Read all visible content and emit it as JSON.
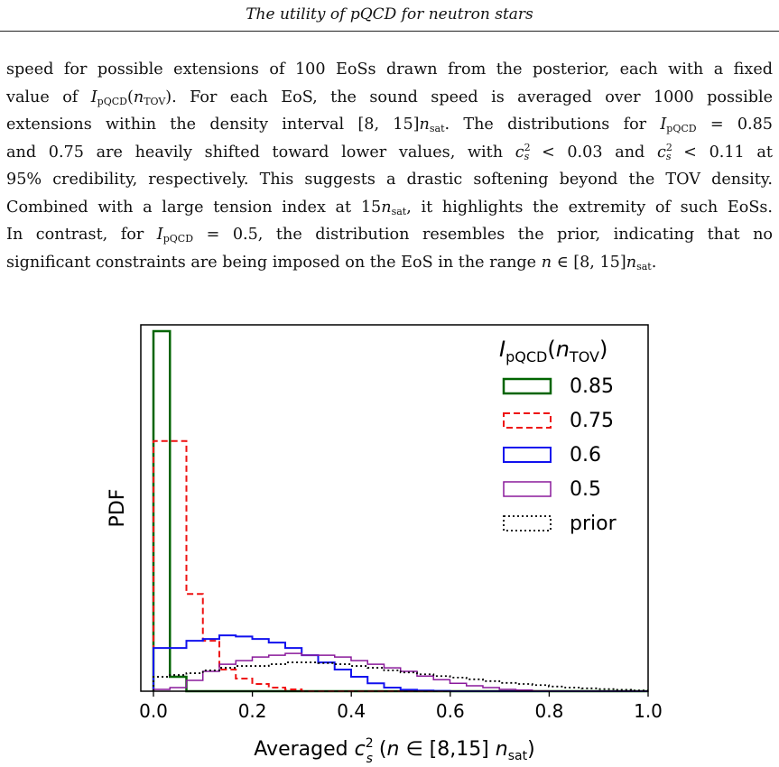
{
  "header": {
    "running_title": "The utility of pQCD for neutron stars"
  },
  "paragraph": {
    "l1": "speed for possible extensions of 100 EoSs drawn from the posterior, each with a fixed",
    "l2_a": "value of ",
    "l2_b": "). For each EoS, the sound speed is averaged over 1000 possible",
    "l3_a": "extensions within the density interval [8, 15]",
    "l3_b": ". The distributions for ",
    "l3_c": " = 0.85",
    "l4_a": "and 0.75 are heavily shifted toward lower values, with ",
    "l4_b": " < 0.03 and ",
    "l4_c": " < 0.11 at",
    "l5": "95% credibility, respectively. This suggests a drastic softening beyond the TOV density.",
    "l6_a": "Combined with a large tension index at 15",
    "l6_b": ", it highlights the extremity of such EoSs.",
    "l7_a": "In contrast, for ",
    "l7_b": " = 0.5, the distribution resembles the prior, indicating that no",
    "l8_a": "significant constraints are being imposed on the EoS in the range ",
    "l8_b": " ∈ [8, 15]",
    "l8_c": ".",
    "sym_I": "I",
    "sub_pqcd": "pQCD",
    "sym_n": "n",
    "sub_tov": "TOV",
    "sub_sat": "sat",
    "sym_c": "c",
    "sub_s": "s",
    "sup_2": "2"
  },
  "chart_data": {
    "type": "histogram",
    "xlabel_prefix": "Averaged ",
    "xlabel_mid": " (",
    "xlabel_in": " ∈ [8,15] ",
    "xlabel_suffix": ")",
    "ylabel": "PDF",
    "xlim": [
      0.0,
      1.0
    ],
    "xticks": [
      "0.0",
      "0.2",
      "0.4",
      "0.6",
      "0.8",
      "1.0"
    ],
    "grid": false,
    "legend_position": "top-right",
    "legend_title_I": "I",
    "legend_title_pqcd": "pQCD",
    "legend_title_n": "n",
    "legend_title_tov": "TOV",
    "bin_width": 0.0333,
    "series": [
      {
        "name": "0.85",
        "color": "#006400",
        "style": "solid",
        "lw": 2.5,
        "values": [
          1.0,
          0.04,
          0,
          0,
          0,
          0,
          0,
          0,
          0,
          0,
          0,
          0,
          0,
          0,
          0,
          0,
          0,
          0,
          0,
          0,
          0,
          0,
          0,
          0,
          0,
          0,
          0,
          0,
          0,
          0
        ]
      },
      {
        "name": "0.75",
        "color": "#ee1111",
        "style": "dashed",
        "lw": 2,
        "values": [
          0.695,
          0.695,
          0.27,
          0.14,
          0.06,
          0.035,
          0.02,
          0.01,
          0.005,
          0,
          0,
          0,
          0,
          0,
          0,
          0,
          0,
          0,
          0,
          0,
          0,
          0,
          0,
          0,
          0,
          0,
          0,
          0,
          0,
          0
        ]
      },
      {
        "name": "0.6",
        "color": "#1111ee",
        "style": "solid",
        "lw": 2,
        "values": [
          0.12,
          0.12,
          0.14,
          0.145,
          0.155,
          0.152,
          0.145,
          0.135,
          0.12,
          0.1,
          0.08,
          0.06,
          0.04,
          0.022,
          0.01,
          0.004,
          0.002,
          0.001,
          0,
          0,
          0,
          0,
          0,
          0,
          0,
          0,
          0,
          0,
          0,
          0
        ]
      },
      {
        "name": "0.5",
        "color": "#8a1a9b",
        "style": "solid",
        "lw": 1.5,
        "values": [
          0.005,
          0.01,
          0.03,
          0.055,
          0.075,
          0.085,
          0.095,
          0.1,
          0.105,
          0.1,
          0.1,
          0.095,
          0.085,
          0.075,
          0.065,
          0.055,
          0.042,
          0.032,
          0.022,
          0.015,
          0.01,
          0.005,
          0.003,
          0.001,
          0,
          0,
          0,
          0,
          0,
          0
        ]
      },
      {
        "name": "prior",
        "color": "#000000",
        "style": "dotted",
        "lw": 1.8,
        "values": [
          0.04,
          0.045,
          0.05,
          0.058,
          0.065,
          0.07,
          0.07,
          0.075,
          0.08,
          0.08,
          0.078,
          0.075,
          0.07,
          0.065,
          0.058,
          0.052,
          0.047,
          0.042,
          0.038,
          0.033,
          0.028,
          0.023,
          0.02,
          0.017,
          0.013,
          0.01,
          0.008,
          0.006,
          0.004,
          0.002
        ]
      }
    ]
  }
}
